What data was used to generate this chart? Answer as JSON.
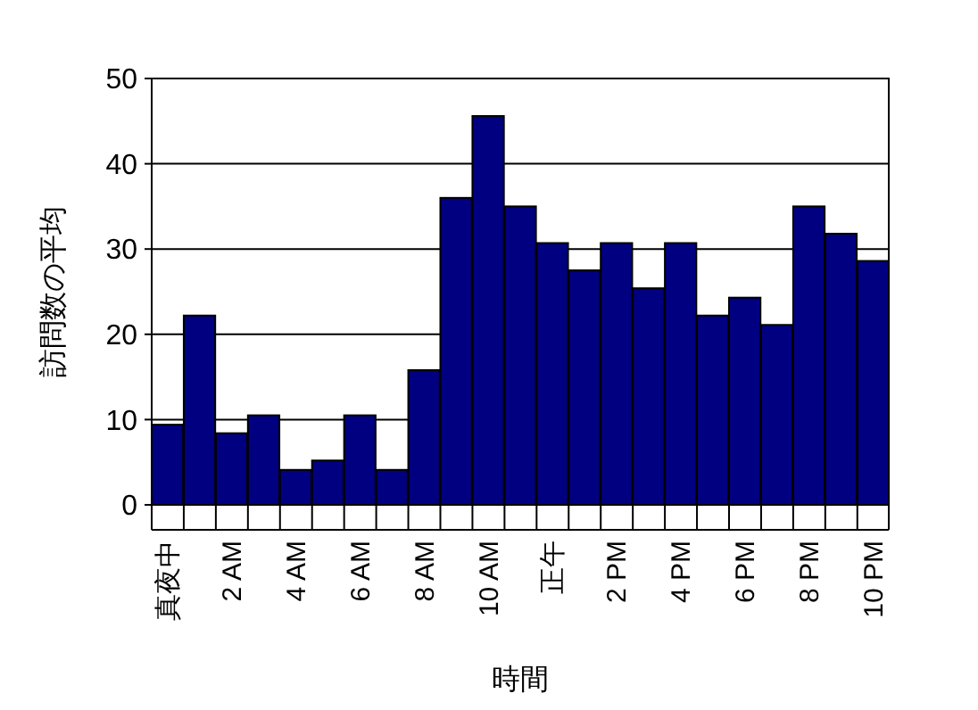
{
  "chart_data": {
    "type": "bar",
    "xlabel": "時間",
    "ylabel": "訪問数の平均",
    "categories": [
      "真夜中",
      null,
      "2 AM",
      null,
      "4 AM",
      null,
      "6 AM",
      null,
      "8 AM",
      null,
      "10 AM",
      null,
      "正午",
      null,
      "2 PM",
      null,
      "4 PM",
      null,
      "6 PM",
      null,
      "8 PM",
      null,
      "10 PM"
    ],
    "values": [
      9.4,
      22.2,
      8.4,
      10.5,
      4.1,
      5.2,
      10.5,
      4.1,
      15.8,
      36,
      45.6,
      35,
      30.7,
      27.5,
      30.7,
      25.4,
      30.7,
      22.2,
      24.3,
      21.1,
      35,
      31.8,
      28.6
    ],
    "color": "#000080",
    "ylim": [
      0,
      50
    ],
    "yticks": [
      0,
      10,
      20,
      30,
      40,
      50
    ],
    "grid": "y"
  }
}
